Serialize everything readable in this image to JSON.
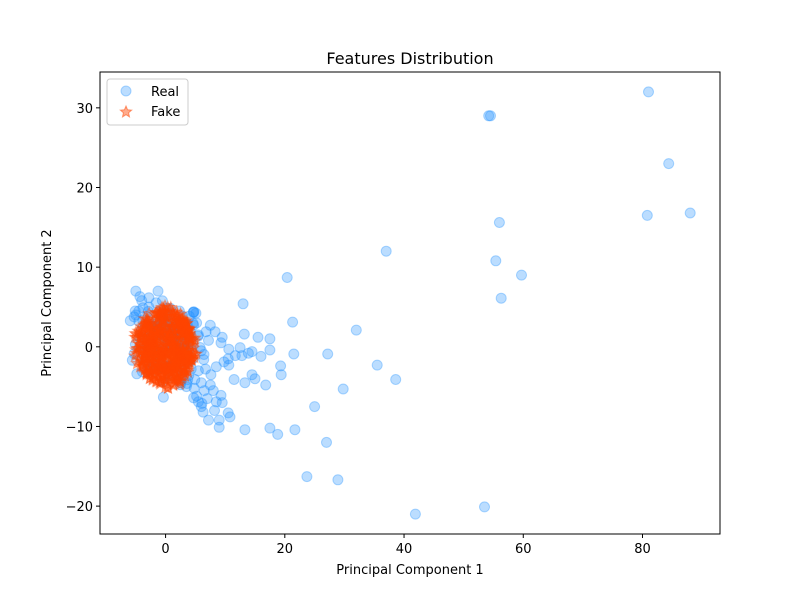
{
  "chart_data": {
    "type": "scatter",
    "title": "Features Distribution",
    "xlabel": "Principal Component 1",
    "ylabel": "Principal Component 2",
    "xlim": [
      -11,
      93
    ],
    "ylim": [
      -23.5,
      34.5
    ],
    "xticks": [
      0,
      20,
      40,
      60,
      80
    ],
    "yticks": [
      -20,
      -10,
      0,
      10,
      20,
      30
    ],
    "tick_labels_x": [
      "0",
      "20",
      "40",
      "60",
      "80"
    ],
    "tick_labels_y": [
      "−20",
      "−10",
      "0",
      "10",
      "20",
      "30"
    ],
    "grid": false,
    "legend": {
      "placement": "top-left",
      "entries": [
        "Real",
        "Fake"
      ]
    },
    "series": [
      {
        "name": "Real",
        "marker": "circle",
        "color": "#1E90FF",
        "points": [
          [
            81,
            32
          ],
          [
            54.5,
            29
          ],
          [
            54.2,
            29
          ],
          [
            84.4,
            23
          ],
          [
            88,
            16.8
          ],
          [
            80.8,
            16.5
          ],
          [
            56,
            15.6
          ],
          [
            37,
            12
          ],
          [
            55.4,
            10.8
          ],
          [
            59.7,
            9
          ],
          [
            20.4,
            8.7
          ],
          [
            56.3,
            6.1
          ],
          [
            -5,
            7
          ],
          [
            -4.3,
            6.3
          ],
          [
            -4,
            5.8
          ],
          [
            13,
            5.4
          ],
          [
            21.3,
            3.1
          ],
          [
            32,
            2.1
          ],
          [
            7.5,
            2.7
          ],
          [
            13.2,
            1.6
          ],
          [
            17.5,
            1
          ],
          [
            15.5,
            1.2
          ],
          [
            9.5,
            1.2
          ],
          [
            8.3,
            1.9
          ],
          [
            12.5,
            -0.1
          ],
          [
            14.5,
            -0.6
          ],
          [
            16,
            -1.2
          ],
          [
            21.5,
            -0.9
          ],
          [
            27.2,
            -0.9
          ],
          [
            17.5,
            -0.4
          ],
          [
            10.5,
            -1.5
          ],
          [
            9.8,
            -1.9
          ],
          [
            13.9,
            -0.8
          ],
          [
            35.5,
            -2.3
          ],
          [
            38.6,
            -4.1
          ],
          [
            29.8,
            -5.3
          ],
          [
            19.3,
            -2.4
          ],
          [
            19.4,
            -3.5
          ],
          [
            14.5,
            -3.5
          ],
          [
            15,
            -4
          ],
          [
            16.8,
            -4.8
          ],
          [
            13.3,
            -4.5
          ],
          [
            11.5,
            -4.1
          ],
          [
            25,
            -7.5
          ],
          [
            9.5,
            -7
          ],
          [
            10.5,
            -8.3
          ],
          [
            8.5,
            -6.9
          ],
          [
            9,
            -9.2
          ],
          [
            9,
            -10.1
          ],
          [
            7.2,
            -9.2
          ],
          [
            13.3,
            -10.4
          ],
          [
            17.5,
            -10.2
          ],
          [
            18.8,
            -11
          ],
          [
            21.7,
            -10.4
          ],
          [
            27,
            -12
          ],
          [
            23.7,
            -16.3
          ],
          [
            28.9,
            -16.7
          ],
          [
            41.9,
            -21
          ],
          [
            53.5,
            -20.1
          ],
          [
            5.5,
            -3
          ],
          [
            6,
            -4.5
          ],
          [
            6.5,
            -5.5
          ],
          [
            7,
            -6.5
          ],
          [
            6,
            -7.5
          ],
          [
            6.3,
            -8.2
          ],
          [
            4.8,
            -5.2
          ],
          [
            3.6,
            -4.6
          ],
          [
            5.2,
            -6.2
          ],
          [
            7.5,
            -4.8
          ],
          [
            7.6,
            -3.5
          ],
          [
            8.5,
            -2.5
          ],
          [
            6.4,
            -1.6
          ],
          [
            7.2,
            0.8
          ],
          [
            6,
            -0.5
          ],
          [
            10.6,
            -2.3
          ],
          [
            11.7,
            -1.1
          ],
          [
            12.8,
            -1.1
          ],
          [
            10.6,
            -0.3
          ],
          [
            9.3,
            0.5
          ],
          [
            5.5,
            1.5
          ],
          [
            6.8,
            1.9
          ],
          [
            5.2,
            3
          ],
          [
            -4.5,
            4.5
          ],
          [
            -5,
            4
          ],
          [
            -4.5,
            3.2
          ],
          [
            -3.8,
            4.9
          ],
          [
            -3,
            3.7
          ],
          [
            -2.8,
            5
          ],
          [
            -5.1,
            4.5
          ],
          [
            4.3,
            -2.8
          ],
          [
            3.9,
            -3.6
          ],
          [
            2.5,
            -4.5
          ],
          [
            5.5,
            -6.9
          ],
          [
            4.7,
            -6.4
          ],
          [
            6.1,
            -7.1
          ],
          [
            8.2,
            -8
          ],
          [
            10.8,
            -8.8
          ],
          [
            9.3,
            -6.1
          ],
          [
            8,
            -5.5
          ],
          [
            3.5,
            -5
          ],
          [
            2.7,
            -3.9
          ],
          [
            4.9,
            -4.1
          ],
          [
            6.7,
            -2.8
          ]
        ]
      },
      {
        "name": "Fake",
        "marker": "star",
        "color": "#FF4500",
        "cluster": {
          "cx": 0,
          "cy": 0,
          "rx": 5.5,
          "ry": 5.5
        }
      }
    ]
  }
}
